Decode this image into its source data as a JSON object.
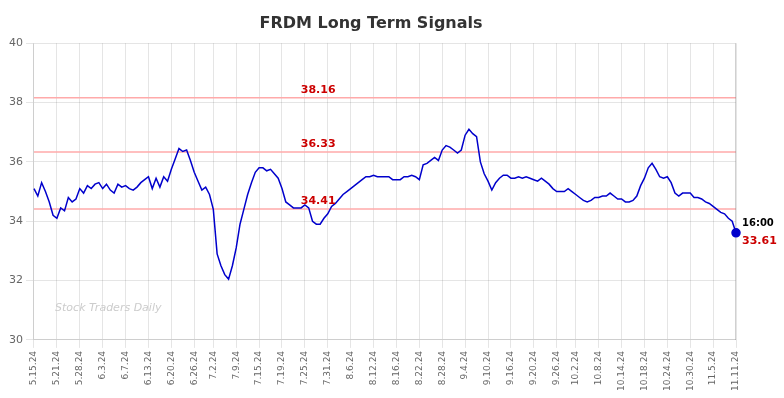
{
  "chart_data": {
    "type": "line",
    "title": "FRDM Long Term Signals",
    "color": "#0000cc",
    "grid": true,
    "ylim": [
      30,
      40
    ],
    "yticks": [
      30,
      32,
      34,
      36,
      38,
      40
    ],
    "hlines": {
      "values": [
        38.16,
        36.33,
        34.41
      ],
      "color": "#ffaaaa",
      "label_color": "#cc0000"
    },
    "annotations": [
      {
        "text": "16:00",
        "color": "#000000"
      },
      {
        "text": "33.61",
        "color": "#cc0000"
      }
    ],
    "watermark": {
      "text": "Stock Traders Daily",
      "color": "#cccccc"
    },
    "categories": [
      "5.15.24",
      null,
      null,
      null,
      null,
      null,
      "5.21.24",
      null,
      null,
      null,
      null,
      null,
      "5.28.24",
      null,
      null,
      null,
      null,
      null,
      "6.3.24",
      null,
      null,
      null,
      null,
      null,
      "6.7.24",
      null,
      null,
      null,
      null,
      null,
      "6.13.24",
      null,
      null,
      null,
      null,
      null,
      "6.20.24",
      null,
      null,
      null,
      null,
      null,
      "6.26.24",
      null,
      null,
      null,
      null,
      "7.2.24",
      null,
      null,
      null,
      null,
      null,
      "7.9.24",
      null,
      null,
      null,
      null,
      null,
      "7.15.24",
      null,
      null,
      null,
      null,
      null,
      "7.19.24",
      null,
      null,
      null,
      null,
      null,
      "7.25.24",
      null,
      null,
      null,
      null,
      null,
      "7.31.24",
      null,
      null,
      null,
      null,
      null,
      "8.6.24",
      null,
      null,
      null,
      null,
      null,
      "8.12.24",
      null,
      null,
      null,
      null,
      null,
      "8.16.24",
      null,
      null,
      null,
      null,
      null,
      "8.22.24",
      null,
      null,
      null,
      null,
      null,
      "8.28.24",
      null,
      null,
      null,
      null,
      null,
      "9.4.24",
      null,
      null,
      null,
      null,
      null,
      "9.10.24",
      null,
      null,
      null,
      null,
      null,
      "9.16.24",
      null,
      null,
      null,
      null,
      null,
      "9.20.24",
      null,
      null,
      null,
      null,
      null,
      "9.26.24",
      null,
      null,
      null,
      null,
      "10.2.24",
      null,
      null,
      null,
      null,
      null,
      "10.8.24",
      null,
      null,
      null,
      null,
      null,
      "10.14.24",
      null,
      null,
      null,
      null,
      null,
      "10.18.24",
      null,
      null,
      null,
      null,
      null,
      "10.24.24",
      null,
      null,
      null,
      null,
      null,
      "10.30.24",
      null,
      null,
      null,
      null,
      null,
      "11.5.24",
      null,
      null,
      null,
      null,
      null,
      "11.11.24"
    ],
    "values": [
      35.1,
      34.85,
      35.3,
      35.0,
      34.65,
      34.2,
      34.1,
      34.45,
      34.35,
      34.8,
      34.65,
      34.75,
      35.1,
      34.95,
      35.2,
      35.1,
      35.25,
      35.3,
      35.1,
      35.25,
      35.05,
      34.95,
      35.25,
      35.15,
      35.2,
      35.1,
      35.05,
      35.15,
      35.3,
      35.4,
      35.5,
      35.1,
      35.45,
      35.15,
      35.5,
      35.35,
      35.75,
      36.1,
      36.45,
      36.35,
      36.4,
      36.05,
      35.65,
      35.35,
      35.05,
      35.15,
      34.9,
      34.4,
      32.9,
      32.5,
      32.2,
      32.05,
      32.5,
      33.1,
      33.9,
      34.4,
      34.9,
      35.3,
      35.65,
      35.8,
      35.8,
      35.7,
      35.75,
      35.6,
      35.45,
      35.1,
      34.65,
      34.55,
      34.45,
      34.45,
      34.45,
      34.55,
      34.45,
      34.0,
      33.9,
      33.9,
      34.1,
      34.25,
      34.5,
      34.6,
      34.75,
      34.9,
      35.0,
      35.1,
      35.2,
      35.3,
      35.4,
      35.5,
      35.5,
      35.55,
      35.5,
      35.5,
      35.5,
      35.5,
      35.4,
      35.4,
      35.4,
      35.5,
      35.5,
      35.55,
      35.5,
      35.4,
      35.9,
      35.95,
      36.05,
      36.15,
      36.05,
      36.4,
      36.55,
      36.5,
      36.4,
      36.3,
      36.4,
      36.9,
      37.1,
      36.95,
      36.85,
      36.0,
      35.6,
      35.35,
      35.05,
      35.3,
      35.45,
      35.55,
      35.55,
      35.45,
      35.45,
      35.5,
      35.45,
      35.5,
      35.45,
      35.4,
      35.35,
      35.45,
      35.35,
      35.25,
      35.1,
      35.0,
      35.0,
      35.0,
      35.1,
      35.0,
      34.9,
      34.8,
      34.7,
      34.65,
      34.7,
      34.8,
      34.8,
      34.85,
      34.85,
      34.95,
      34.85,
      34.75,
      34.75,
      34.65,
      34.65,
      34.7,
      34.85,
      35.2,
      35.45,
      35.8,
      35.95,
      35.75,
      35.5,
      35.45,
      35.5,
      35.3,
      34.95,
      34.85,
      34.95,
      34.95,
      34.95,
      34.8,
      34.8,
      34.75,
      34.65,
      34.6,
      34.5,
      34.4,
      34.3,
      34.25,
      34.1,
      34.0,
      33.61
    ]
  }
}
